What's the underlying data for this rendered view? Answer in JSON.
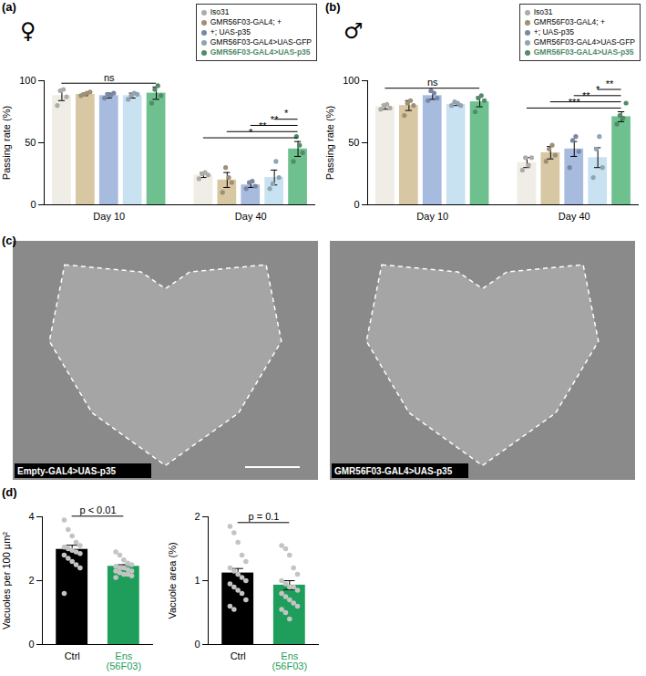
{
  "chart_data": [
    {
      "panel": "(a)",
      "type": "bar",
      "title": "♀",
      "categories": [
        "Day 10",
        "Day 40"
      ],
      "y_label": "Passing rate (%)",
      "ylim": [
        0,
        100
      ],
      "yticks": [
        0,
        50,
        100
      ],
      "legend": "top-right",
      "series": [
        {
          "name": "Iso31",
          "color": "#efede6",
          "values": [
            88,
            24
          ],
          "errors": [
            4,
            2
          ],
          "points": [
            [
              80,
              92,
              93,
              87
            ],
            [
              21,
              25,
              26,
              24
            ]
          ]
        },
        {
          "name": "GMR56F03-GAL4; +",
          "color": "#d8c7a3",
          "values": [
            89,
            20
          ],
          "errors": [
            1,
            6
          ],
          "points": [
            [
              88,
              89,
              90,
              91
            ],
            [
              10,
              30,
              22,
              18
            ]
          ]
        },
        {
          "name": "+; UAS-p35",
          "color": "#a7bbdf",
          "values": [
            88,
            16
          ],
          "errors": [
            2,
            2
          ],
          "points": [
            [
              86,
              89,
              88,
              90
            ],
            [
              13,
              18,
              19,
              15
            ]
          ]
        },
        {
          "name": "GMR56F03-GAL4>UAS-GFP",
          "color": "#c9e2f2",
          "values": [
            88,
            22
          ],
          "errors": [
            2,
            6
          ],
          "points": [
            [
              85,
              88,
              90,
              89
            ],
            [
              13,
              17,
              35,
              22
            ]
          ]
        },
        {
          "name": "GMR56F03-GAL4>UAS-p35",
          "color": "#6fc08f",
          "values": [
            90,
            45
          ],
          "errors": [
            5,
            6
          ],
          "points": [
            [
              82,
              93,
              96,
              88
            ],
            [
              35,
              55,
              48,
              42
            ]
          ]
        }
      ],
      "annotations": [
        {
          "category": "Day 10",
          "label": "ns"
        },
        {
          "category": "Day 40",
          "from": "Iso31",
          "to": "GMR56F03-GAL4>UAS-p35",
          "label": "*"
        },
        {
          "category": "Day 40",
          "from": "GMR56F03-GAL4; +",
          "to": "GMR56F03-GAL4>UAS-p35",
          "label": "**"
        },
        {
          "category": "Day 40",
          "from": "+; UAS-p35",
          "to": "GMR56F03-GAL4>UAS-p35",
          "label": "**"
        },
        {
          "category": "Day 40",
          "from": "GMR56F03-GAL4>UAS-GFP",
          "to": "GMR56F03-GAL4>UAS-p35",
          "label": "*"
        }
      ]
    },
    {
      "panel": "(b)",
      "type": "bar",
      "title": "♂",
      "categories": [
        "Day 10",
        "Day 40"
      ],
      "y_label": "Passing rate (%)",
      "ylim": [
        0,
        100
      ],
      "yticks": [
        0,
        50,
        100
      ],
      "legend": "top-right",
      "series": [
        {
          "name": "Iso31",
          "color": "#efede6",
          "values": [
            79,
            34
          ],
          "errors": [
            2,
            4
          ],
          "points": [
            [
              77,
              80,
              81,
              78
            ],
            [
              28,
              38,
              32,
              38
            ]
          ]
        },
        {
          "name": "GMR56F03-GAL4; +",
          "color": "#d8c7a3",
          "values": [
            80,
            42
          ],
          "errors": [
            4,
            5
          ],
          "points": [
            [
              72,
              82,
              84,
              80
            ],
            [
              35,
              45,
              48,
              40
            ]
          ]
        },
        {
          "name": "+; UAS-p35",
          "color": "#a7bbdf",
          "values": [
            88,
            45
          ],
          "errors": [
            3,
            6
          ],
          "points": [
            [
              84,
              92,
              90,
              86
            ],
            [
              30,
              52,
              55,
              43
            ]
          ]
        },
        {
          "name": "GMR56F03-GAL4>UAS-GFP",
          "color": "#c9e2f2",
          "values": [
            81,
            38
          ],
          "errors": [
            1,
            8
          ],
          "points": [
            [
              80,
              83,
              82,
              80
            ],
            [
              22,
              45,
              55,
              30
            ]
          ]
        },
        {
          "name": "GMR56F03-GAL4>UAS-p35",
          "color": "#6fc08f",
          "values": [
            83,
            71
          ],
          "errors": [
            4,
            4
          ],
          "points": [
            [
              75,
              86,
              88,
              84
            ],
            [
              65,
              72,
              70,
              82
            ]
          ]
        }
      ],
      "annotations": [
        {
          "category": "Day 10",
          "label": "ns"
        },
        {
          "category": "Day 40",
          "from": "Iso31",
          "to": "GMR56F03-GAL4>UAS-p35",
          "label": "***"
        },
        {
          "category": "Day 40",
          "from": "GMR56F03-GAL4; +",
          "to": "GMR56F03-GAL4>UAS-p35",
          "label": "**"
        },
        {
          "category": "Day 40",
          "from": "+; UAS-p35",
          "to": "GMR56F03-GAL4>UAS-p35",
          "label": "*"
        },
        {
          "category": "Day 40",
          "from": "GMR56F03-GAL4>UAS-GFP",
          "to": "GMR56F03-GAL4>UAS-p35",
          "label": "**"
        }
      ]
    },
    {
      "panel": "(d)",
      "type": "bar",
      "categories": [
        "Ctrl",
        "Ens\n(56F03)"
      ],
      "y_label": "Vacuoles per 100 µm²",
      "ylim": [
        0,
        4
      ],
      "yticks": [
        0,
        2,
        4
      ],
      "colors": [
        "#000000",
        "#1e9e5a"
      ],
      "values": [
        2.98,
        2.45
      ],
      "errors": [
        0.13,
        0.05
      ],
      "points": [
        [
          3.9,
          3.6,
          3.4,
          3.2,
          3.1,
          3.05,
          3.0,
          2.95,
          2.9,
          2.85,
          2.8,
          2.7,
          2.6,
          2.5,
          2.4,
          1.6
        ],
        [
          2.9,
          2.8,
          2.65,
          2.55,
          2.5,
          2.45,
          2.4,
          2.4,
          2.35,
          2.3,
          2.3,
          2.25,
          2.2,
          2.2,
          2.15,
          2.1
        ]
      ],
      "annotations": [
        {
          "from": "Ctrl",
          "to": "Ens\n(56F03)",
          "label": "p < 0.01"
        }
      ]
    },
    {
      "type": "bar",
      "categories": [
        "Ctrl",
        "Ens\n(56F03)"
      ],
      "y_label": "Vacuole area (%)",
      "ylim": [
        0,
        2
      ],
      "yticks": [
        0,
        1,
        2
      ],
      "colors": [
        "#000000",
        "#1e9e5a"
      ],
      "values": [
        1.12,
        0.93
      ],
      "errors": [
        0.07,
        0.07
      ],
      "points": [
        [
          1.85,
          1.75,
          1.6,
          1.4,
          1.3,
          1.2,
          1.15,
          1.1,
          1.05,
          1.0,
          0.95,
          0.9,
          0.85,
          0.8,
          0.7,
          0.6,
          0.55
        ],
        [
          1.55,
          1.5,
          1.4,
          1.2,
          1.1,
          1.0,
          0.95,
          0.9,
          0.9,
          0.85,
          0.8,
          0.75,
          0.7,
          0.65,
          0.6,
          0.55,
          0.5,
          0.4
        ]
      ],
      "annotations": [
        {
          "from": "Ctrl",
          "to": "Ens\n(56F03)",
          "label": "p = 0.1"
        }
      ]
    }
  ],
  "image_panel": {
    "panel": "(c)",
    "images": [
      {
        "caption": "Empty-GAL4>UAS-p35"
      },
      {
        "caption": "GMR56F03-GAL4>UAS-p35"
      }
    ]
  }
}
